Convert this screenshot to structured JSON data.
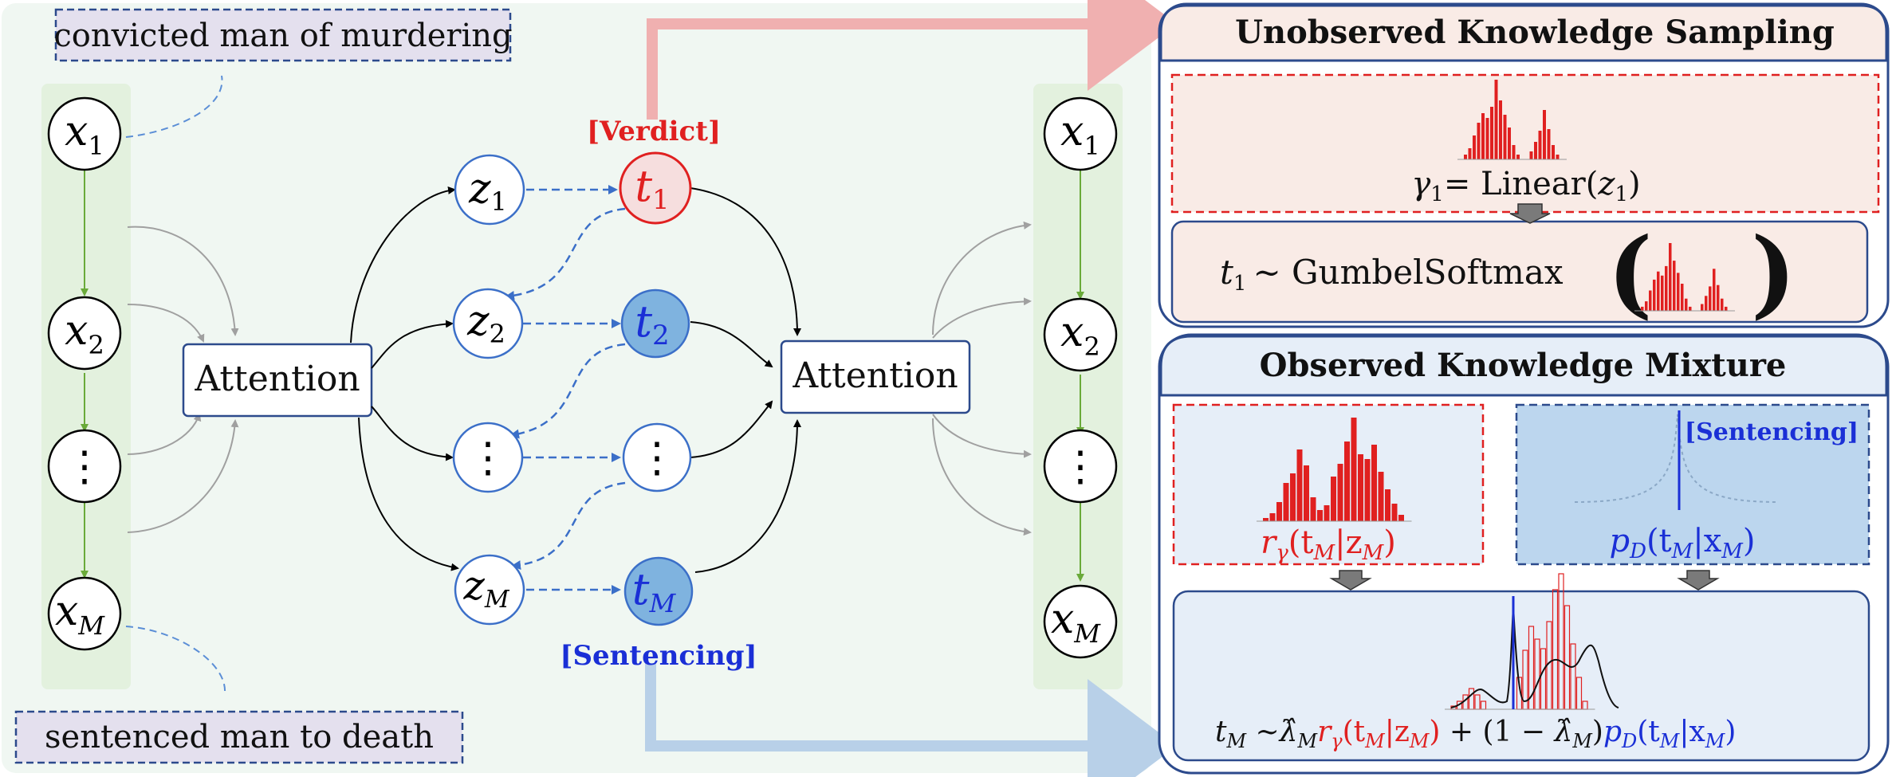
{
  "left": {
    "top_note": "convicted man of murdering",
    "bottom_note": "sentenced man to death",
    "inputs": [
      {
        "base": "x",
        "sub": "1"
      },
      {
        "base": "x",
        "sub": "2"
      },
      {
        "base": "⋮",
        "sub": ""
      },
      {
        "base": "x",
        "sub": "M"
      }
    ],
    "attention_label": "Attention",
    "latents": [
      {
        "base": "z",
        "sub": "1"
      },
      {
        "base": "z",
        "sub": "2"
      },
      {
        "base": "⋮",
        "sub": ""
      },
      {
        "base": "z",
        "sub": "M"
      }
    ],
    "tasks": [
      {
        "base": "t",
        "sub": "1"
      },
      {
        "base": "t",
        "sub": "2"
      },
      {
        "base": "⋮",
        "sub": ""
      },
      {
        "base": "t",
        "sub": "M"
      }
    ],
    "verdict_tag": "[Verdict]",
    "sentencing_tag": "[Sentencing]",
    "attention2_label": "Attention",
    "outputs": [
      {
        "base": "x",
        "sub": "1"
      },
      {
        "base": "x",
        "sub": "2"
      },
      {
        "base": "⋮",
        "sub": ""
      },
      {
        "base": "x",
        "sub": "M"
      }
    ]
  },
  "unobserved": {
    "title": "Unobserved Knowledge Sampling",
    "gamma_lhs": "γ",
    "gamma_sub": "1",
    "gamma_eq": "= Linear(",
    "gamma_arg": "z",
    "gamma_arg_sub": "1",
    "gamma_close": ")",
    "sample_lhs": "t",
    "sample_sub": "1",
    "sample_op": "∼ GumbelSoftmax",
    "lparen": "(",
    "rparen": ")"
  },
  "observed": {
    "title": "Observed Knowledge Mixture",
    "sentencing_tag": "[Sentencing]",
    "r_label": "r",
    "r_sub": "γ",
    "r_args": "(t",
    "r_args_sub1": "M",
    "r_bar": "|z",
    "r_args_sub2": "M",
    "r_close": ")",
    "p_label": "p",
    "p_sub": "D",
    "p_args": "(t",
    "p_args_sub1": "M",
    "p_bar": "|x",
    "p_args_sub2": "M",
    "p_close": ")",
    "mix_lhs": "t",
    "mix_lhs_sub": "M",
    "mix_sim": " ∼",
    "mix_lambda": "λ̂",
    "mix_lambda_sub": "M",
    "mix_plus": " + (1 − ",
    "mix_lambda2": "λ̂",
    "mix_lambda2_sub": "M",
    "mix_close": ")"
  },
  "colors": {
    "panel_bg": "#f0f7f2",
    "column_bg": "#e3f1de",
    "note_bg": "#e4e0ee",
    "note_border": "#2c4a8c",
    "red": "#e02020",
    "blue": "#1a2fd6",
    "node_blue_fill": "#7fb3df",
    "node_red_fill": "#f6dede",
    "node_stroke_blue": "#3b6fc8",
    "green_arrow": "#6aaa3a",
    "pink_arrow": "#f0b0b0",
    "lightblue_arrow": "#b8d0e8",
    "box_stroke": "#2c4a8c",
    "unobs_bg": "#f9ebe6",
    "obs_bg": "#e6eef8",
    "sent_box_bg": "#bcd6ee"
  },
  "icons": [
    "down-arrow-icon"
  ]
}
